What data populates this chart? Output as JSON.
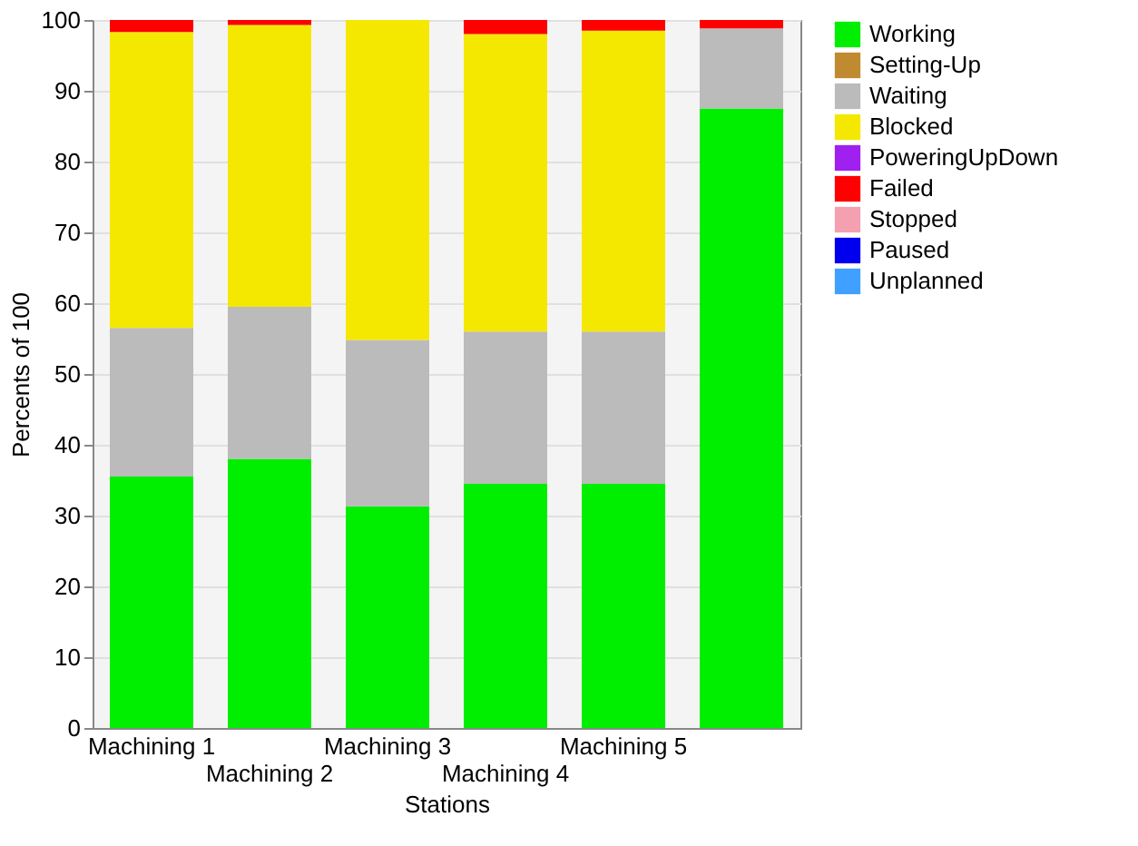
{
  "chart_data": {
    "type": "bar",
    "stacked": true,
    "xlabel": "Stations",
    "ylabel": "Percents of 100",
    "categories": [
      "Machining 1",
      "Machining  2",
      "Machining 3",
      "Machining 4",
      "Machining 5",
      null
    ],
    "series": [
      {
        "name": "Working",
        "color": "#00ee00",
        "values": [
          35.5,
          38,
          31.3,
          34.5,
          34.5,
          87.5
        ]
      },
      {
        "name": "Setting-Up",
        "color": "#c08a30",
        "values": [
          0,
          0,
          0,
          0,
          0,
          0
        ]
      },
      {
        "name": "Waiting",
        "color": "#bbbbbb",
        "values": [
          21,
          21.5,
          23.5,
          21.5,
          21.5,
          11.3
        ]
      },
      {
        "name": "Blocked",
        "color": "#f5e800",
        "values": [
          41.8,
          39.8,
          45.2,
          42,
          42.5,
          0
        ]
      },
      {
        "name": "PoweringUpDown",
        "color": "#a020f0",
        "values": [
          0,
          0,
          0,
          0,
          0,
          0
        ]
      },
      {
        "name": "Failed",
        "color": "#ff0000",
        "values": [
          1.7,
          0.7,
          0,
          2,
          1.5,
          1.2
        ]
      },
      {
        "name": "Stopped",
        "color": "#f4a0b0",
        "values": [
          0,
          0,
          0,
          0,
          0,
          0
        ]
      },
      {
        "name": "Paused",
        "color": "#0000ee",
        "values": [
          0,
          0,
          0,
          0,
          0,
          0
        ]
      },
      {
        "name": "Unplanned",
        "color": "#40a0ff",
        "values": [
          0,
          0,
          0,
          0,
          0,
          0
        ]
      }
    ],
    "ylim": [
      0,
      100
    ],
    "yticks": [
      0,
      10,
      20,
      30,
      40,
      50,
      60,
      70,
      80,
      90,
      100
    ],
    "grid": "y",
    "legend": "top right"
  }
}
